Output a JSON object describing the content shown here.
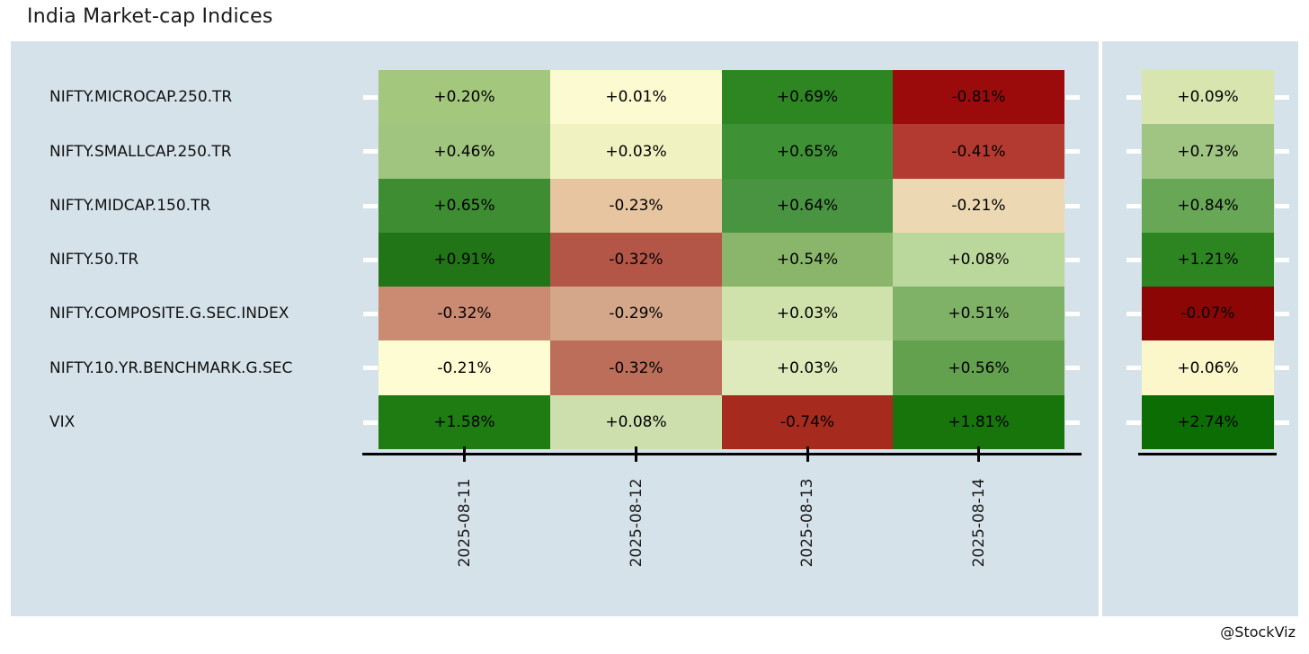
{
  "title": "India Market-cap Indices",
  "watermark": "@StockViz",
  "colors": {
    "panel_bg": "#d5e2ea",
    "page_bg": "#ffffff",
    "axis_line": "#000000",
    "tick_mark": "#ffffff",
    "text": "#1a1a1a"
  },
  "chart_data": {
    "type": "heatmap",
    "title": "India Market-cap Indices",
    "legend_position": "none",
    "grid": false,
    "rows": [
      "NIFTY.MICROCAP.250.TR",
      "NIFTY.SMALLCAP.250.TR",
      "NIFTY.MIDCAP.150.TR",
      "NIFTY.50.TR",
      "NIFTY.COMPOSITE.G.SEC.INDEX",
      "NIFTY.10.YR.BENCHMARK.G.SEC",
      "VIX"
    ],
    "columns": [
      "2025-08-11",
      "2025-08-12",
      "2025-08-13",
      "2025-08-14"
    ],
    "values": [
      [
        "+0.20%",
        "+0.01%",
        "+0.69%",
        "-0.81%"
      ],
      [
        "+0.46%",
        "+0.03%",
        "+0.65%",
        "-0.41%"
      ],
      [
        "+0.65%",
        "-0.23%",
        "+0.64%",
        "-0.21%"
      ],
      [
        "+0.91%",
        "-0.32%",
        "+0.54%",
        "+0.08%"
      ],
      [
        "-0.32%",
        "-0.29%",
        "+0.03%",
        "+0.51%"
      ],
      [
        "-0.21%",
        "-0.32%",
        "+0.03%",
        "+0.56%"
      ],
      [
        "+1.58%",
        "+0.08%",
        "-0.74%",
        "+1.81%"
      ]
    ],
    "values_numeric": [
      [
        0.2,
        0.01,
        0.69,
        -0.81
      ],
      [
        0.46,
        0.03,
        0.65,
        -0.41
      ],
      [
        0.65,
        -0.23,
        0.64,
        -0.21
      ],
      [
        0.91,
        -0.32,
        0.54,
        0.08
      ],
      [
        -0.32,
        -0.29,
        0.03,
        0.51
      ],
      [
        -0.21,
        -0.32,
        0.03,
        0.56
      ],
      [
        1.58,
        0.08,
        -0.74,
        1.81
      ]
    ],
    "cell_colors": [
      [
        "#a4c77e",
        "#fbfad0",
        "#2d8622",
        "#9c0b0b"
      ],
      [
        "#a0c57f",
        "#f0f2c2",
        "#3e9134",
        "#b23a30"
      ],
      [
        "#3e8d33",
        "#e6c5a0",
        "#489441",
        "#ecd9b4"
      ],
      [
        "#217516",
        "#b35648",
        "#8ab66c",
        "#bad79c"
      ],
      [
        "#cb8a72",
        "#d5a78a",
        "#cfe2ab",
        "#7fb167"
      ],
      [
        "#fdfcd2",
        "#bd6e5a",
        "#dfeabc",
        "#63a14f"
      ],
      [
        "#1e7c12",
        "#ccdfad",
        "#a62b1e",
        "#17750c"
      ]
    ],
    "right_column": {
      "values": [
        "+0.09%",
        "+0.73%",
        "+0.84%",
        "+1.21%",
        "-0.07%",
        "+0.06%",
        "+2.74%"
      ],
      "values_numeric": [
        0.09,
        0.73,
        0.84,
        1.21,
        -0.07,
        0.06,
        2.74
      ],
      "colors": [
        "#d8e5ae",
        "#a0c583",
        "#67a756",
        "#2d8522",
        "#8c0606",
        "#fbf7cb",
        "#0c6d04"
      ]
    }
  }
}
